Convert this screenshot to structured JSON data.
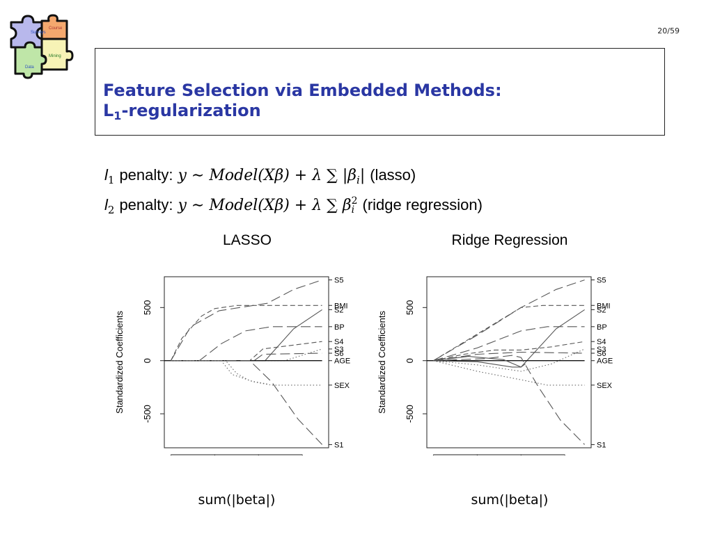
{
  "page_number": "20/59",
  "logo": {
    "pieces": [
      "Surveys",
      "Course",
      "Mining",
      "Data"
    ]
  },
  "title": {
    "line1": "Feature Selection via Embedded Methods:",
    "line2_main": "L",
    "line2_sub": "1",
    "line2_rest": "-regularization"
  },
  "formulas": [
    {
      "label": "l",
      "label_sub": "1",
      "word": "penalty:",
      "expr": "y ∼ Model(Xβ) + λ ∑ |β",
      "expr_sub": "i",
      "expr_tail": "|",
      "note": "(lasso)"
    },
    {
      "label": "l",
      "label_sub": "2",
      "word": "penalty:",
      "expr": "y ∼ Model(Xβ) + λ ∑ β",
      "expr_sub": "i",
      "expr_sup": "2",
      "note": "(ridge regression)"
    }
  ],
  "xcaption": "sum(|beta|)",
  "chart_data": [
    {
      "type": "line",
      "title": "LASSO",
      "xlabel": "",
      "ylabel": "Standardized Coefficients",
      "xlim": [
        -150,
        3600
      ],
      "ylim": [
        -820,
        790
      ],
      "xticks": [
        "0",
        "1000",
        "2000",
        "3000"
      ],
      "yticks": [
        "-500",
        "0",
        "500"
      ],
      "grid": false,
      "series": [
        {
          "name": "S5",
          "dash": "long",
          "x": [
            0,
            450,
            1100,
            2200,
            2800,
            3450
          ],
          "y": [
            0,
            320,
            470,
            540,
            670,
            760
          ]
        },
        {
          "name": "BMI",
          "dash": "med",
          "x": [
            0,
            250,
            700,
            1000,
            1500,
            2200,
            3450
          ],
          "y": [
            0,
            210,
            420,
            490,
            520,
            520,
            520
          ]
        },
        {
          "name": "S2",
          "dash": "solid",
          "x": [
            0,
            2150,
            2800,
            3450
          ],
          "y": [
            0,
            0,
            300,
            480
          ]
        },
        {
          "name": "BP",
          "dash": "long",
          "x": [
            0,
            650,
            1150,
            1700,
            2300,
            3450
          ],
          "y": [
            0,
            0,
            160,
            280,
            320,
            320
          ]
        },
        {
          "name": "S4",
          "dash": "med",
          "x": [
            0,
            1800,
            2100,
            3450
          ],
          "y": [
            0,
            0,
            110,
            180
          ]
        },
        {
          "name": "S3",
          "dash": "dot",
          "x": [
            0,
            2600,
            3450
          ],
          "y": [
            0,
            0,
            110
          ]
        },
        {
          "name": "S6",
          "dash": "long",
          "x": [
            0,
            1900,
            2100,
            3450
          ],
          "y": [
            0,
            0,
            60,
            70
          ]
        },
        {
          "name": "AGE",
          "dash": "solid",
          "x": [
            -150,
            3450
          ],
          "y": [
            0,
            0
          ]
        },
        {
          "name": "SEX",
          "dash": "dot",
          "x": [
            0,
            1150,
            1400,
            1900,
            2300,
            3450
          ],
          "y": [
            0,
            0,
            -130,
            -200,
            -230,
            -230
          ]
        },
        {
          "name": "S1",
          "dash": "long",
          "x": [
            0,
            1800,
            2300,
            2900,
            3450
          ],
          "y": [
            0,
            0,
            -200,
            -550,
            -790
          ]
        },
        {
          "name": "",
          "dash": "dot",
          "x": [
            0,
            1250,
            1500,
            1800,
            2200
          ],
          "y": [
            0,
            0,
            -120,
            -190,
            -220
          ]
        }
      ],
      "end_labels": [
        {
          "text": "S5",
          "y": 760
        },
        {
          "text": "BMI",
          "y": 520
        },
        {
          "text": "S2",
          "y": 480
        },
        {
          "text": "BP",
          "y": 320
        },
        {
          "text": "S4",
          "y": 180
        },
        {
          "text": "S3",
          "y": 110
        },
        {
          "text": "S6",
          "y": 70
        },
        {
          "text": "AGE",
          "y": 0
        },
        {
          "text": "SEX",
          "y": -230
        },
        {
          "text": "S1",
          "y": -790
        }
      ]
    },
    {
      "type": "line",
      "title": "Ridge Regression",
      "xlabel": "",
      "ylabel": "Standardized Coefficients",
      "xlim": [
        -150,
        3600
      ],
      "ylim": [
        -820,
        790
      ],
      "xticks": [
        "0",
        "1000",
        "2000",
        "3000"
      ],
      "yticks": [
        "-500",
        "0",
        "500"
      ],
      "grid": false,
      "series": [
        {
          "name": "S5",
          "dash": "long",
          "x": [
            0,
            1000,
            2000,
            2800,
            3450
          ],
          "y": [
            0,
            240,
            500,
            670,
            760
          ]
        },
        {
          "name": "BMI",
          "dash": "med",
          "x": [
            0,
            1000,
            2000,
            2500,
            3450
          ],
          "y": [
            0,
            250,
            500,
            520,
            520
          ]
        },
        {
          "name": "S2",
          "dash": "solid",
          "x": [
            0,
            1000,
            1800,
            2000,
            2800,
            3450
          ],
          "y": [
            0,
            -10,
            -60,
            -60,
            300,
            480
          ]
        },
        {
          "name": "BP",
          "dash": "long",
          "x": [
            0,
            1000,
            2000,
            2600,
            3450
          ],
          "y": [
            0,
            120,
            280,
            320,
            320
          ]
        },
        {
          "name": "S4",
          "dash": "med",
          "x": [
            0,
            700,
            1400,
            2000,
            2700,
            3450
          ],
          "y": [
            0,
            60,
            100,
            100,
            130,
            180
          ]
        },
        {
          "name": "S3",
          "dash": "dot",
          "x": [
            0,
            1000,
            2000,
            2700,
            3450
          ],
          "y": [
            0,
            -40,
            -100,
            -30,
            110
          ]
        },
        {
          "name": "S6",
          "dash": "long",
          "x": [
            0,
            1000,
            2000,
            3450
          ],
          "y": [
            0,
            60,
            80,
            70
          ]
        },
        {
          "name": "AGE",
          "dash": "solid",
          "x": [
            -150,
            3450
          ],
          "y": [
            0,
            0
          ]
        },
        {
          "name": "SEX",
          "dash": "dot",
          "x": [
            0,
            1000,
            2000,
            2600,
            3450
          ],
          "y": [
            0,
            -100,
            -180,
            -230,
            -230
          ]
        },
        {
          "name": "S1",
          "dash": "long",
          "x": [
            0,
            1200,
            1800,
            2000,
            2400,
            2900,
            3450
          ],
          "y": [
            0,
            20,
            50,
            30,
            -250,
            -560,
            -790
          ]
        },
        {
          "name": "",
          "dash": "solid",
          "x": [
            0,
            800,
            1600,
            2000,
            2100
          ],
          "y": [
            0,
            40,
            10,
            -60,
            -30
          ]
        }
      ],
      "end_labels": [
        {
          "text": "S5",
          "y": 760
        },
        {
          "text": "BMI",
          "y": 520
        },
        {
          "text": "S2",
          "y": 480
        },
        {
          "text": "BP",
          "y": 320
        },
        {
          "text": "S4",
          "y": 180
        },
        {
          "text": "S3",
          "y": 110
        },
        {
          "text": "S6",
          "y": 70
        },
        {
          "text": "AGE",
          "y": 0
        },
        {
          "text": "SEX",
          "y": -230
        },
        {
          "text": "S1",
          "y": -790
        }
      ]
    }
  ]
}
